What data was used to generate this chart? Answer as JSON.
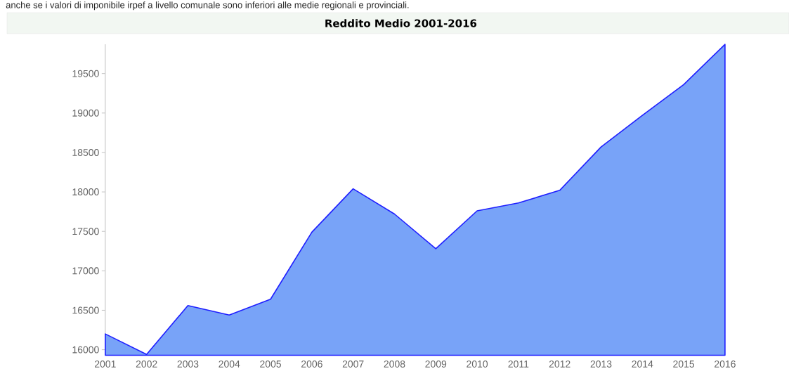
{
  "chart_data": {
    "type": "area",
    "title": "Reddito Medio 2001-2016",
    "annotations": [
      "anche se i valori di imponibile irpef a livello comunale sono inferiori alle medie regionali e provinciali."
    ],
    "categories": [
      "2001",
      "2002",
      "2003",
      "2004",
      "2005",
      "2006",
      "2007",
      "2008",
      "2009",
      "2010",
      "2011",
      "2012",
      "2013",
      "2014",
      "2015",
      "2016"
    ],
    "series": [
      {
        "color": "#78a3f8",
        "values": [
          16200,
          15940,
          16560,
          16440,
          16640,
          17490,
          18040,
          17720,
          17280,
          17760,
          17860,
          18020,
          18570,
          18970,
          19360,
          19870
        ]
      }
    ],
    "ylim": [
      15930,
      19872
    ],
    "yticks": [
      16000,
      16500,
      17000,
      17500,
      18000,
      18500,
      19000,
      19500
    ],
    "grid": false
  }
}
